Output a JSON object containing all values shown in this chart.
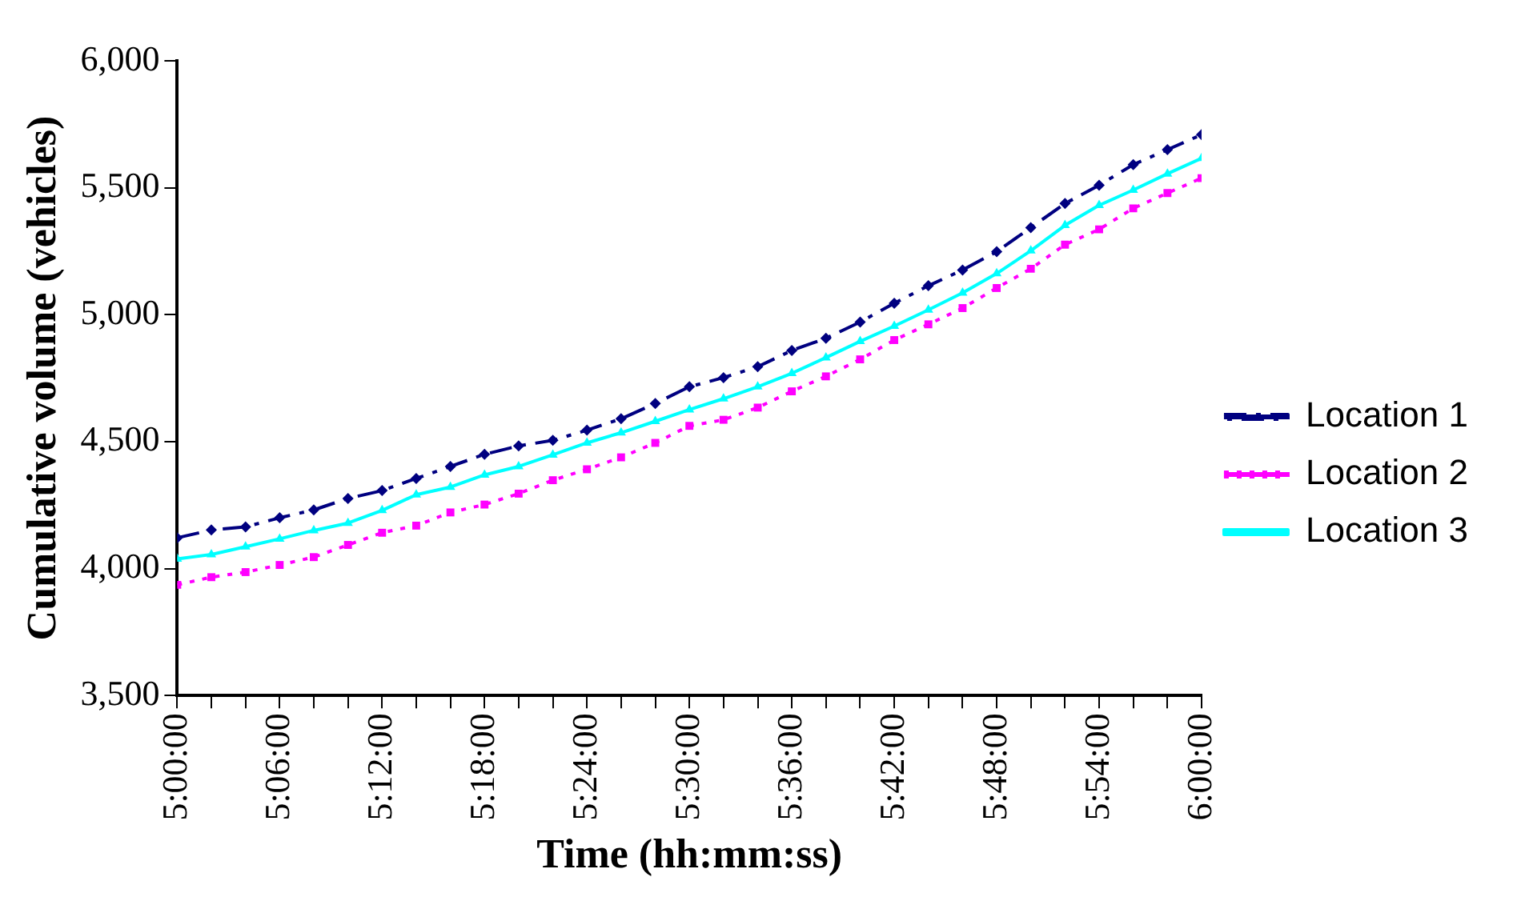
{
  "chart_data": {
    "type": "line",
    "xlabel": "Time (hh:mm:ss)",
    "ylabel": "Cumulative volume (vehicles)",
    "x": [
      5,
      5.0333,
      5.0667,
      5.1,
      5.1333,
      5.1667,
      5.2,
      5.2333,
      5.2667,
      5.3,
      5.3333,
      5.3667,
      5.4,
      5.4333,
      5.4667,
      5.5,
      5.5333,
      5.5667,
      5.6,
      5.6333,
      5.6667,
      5.7,
      5.7333,
      5.7667,
      5.8,
      5.8333,
      5.8667,
      5.9,
      5.9333,
      5.9667,
      6
    ],
    "series": [
      {
        "name": "Location 1",
        "color": "#000080",
        "marker": "diamond",
        "line_style": "dashed",
        "values": [
          4121,
          4152,
          4164,
          4200,
          4231,
          4276,
          4307,
          4355,
          4402,
          4450,
          4483,
          4505,
          4545,
          4590,
          4650,
          4716,
          4752,
          4795,
          4859,
          4907,
          4971,
          5045,
          5114,
          5176,
          5248,
          5343,
          5438,
          5510,
          5591,
          5650,
          5709
        ]
      },
      {
        "name": "Location 2",
        "color": "#ff00ff",
        "marker": "square",
        "line_style": "dotted",
        "values": [
          3936,
          3966,
          3986,
          4014,
          4045,
          4093,
          4141,
          4169,
          4221,
          4252,
          4295,
          4348,
          4391,
          4438,
          4495,
          4562,
          4586,
          4634,
          4698,
          4757,
          4824,
          4900,
          4962,
          5026,
          5105,
          5181,
          5276,
          5336,
          5419,
          5479,
          5538
        ]
      },
      {
        "name": "Location 3",
        "color": "#00ffff",
        "marker": "triangle",
        "line_style": "solid",
        "values": [
          4038,
          4055,
          4086,
          4117,
          4150,
          4179,
          4229,
          4291,
          4321,
          4369,
          4402,
          4448,
          4495,
          4535,
          4580,
          4626,
          4669,
          4716,
          4769,
          4831,
          4895,
          4955,
          5019,
          5086,
          5162,
          5252,
          5352,
          5431,
          5491,
          5555,
          5616
        ]
      }
    ],
    "xlim": [
      5,
      6
    ],
    "xticks": [
      {
        "value": 5,
        "label": "5:00:00"
      },
      {
        "value": 5.0333,
        "label": null
      },
      {
        "value": 5.0667,
        "label": null
      },
      {
        "value": 5.1,
        "label": "5:06:00"
      },
      {
        "value": 5.1333,
        "label": null
      },
      {
        "value": 5.1667,
        "label": null
      },
      {
        "value": 5.2,
        "label": "5:12:00"
      },
      {
        "value": 5.2333,
        "label": null
      },
      {
        "value": 5.2667,
        "label": null
      },
      {
        "value": 5.3,
        "label": "5:18:00"
      },
      {
        "value": 5.3333,
        "label": null
      },
      {
        "value": 5.3667,
        "label": null
      },
      {
        "value": 5.4,
        "label": "5:24:00"
      },
      {
        "value": 5.4333,
        "label": null
      },
      {
        "value": 5.4667,
        "label": null
      },
      {
        "value": 5.5,
        "label": "5:30:00"
      },
      {
        "value": 5.5333,
        "label": null
      },
      {
        "value": 5.5667,
        "label": null
      },
      {
        "value": 5.6,
        "label": "5:36:00"
      },
      {
        "value": 5.6333,
        "label": null
      },
      {
        "value": 5.6667,
        "label": null
      },
      {
        "value": 5.7,
        "label": "5:42:00"
      },
      {
        "value": 5.7333,
        "label": null
      },
      {
        "value": 5.7667,
        "label": null
      },
      {
        "value": 5.8,
        "label": "5:48:00"
      },
      {
        "value": 5.8333,
        "label": null
      },
      {
        "value": 5.8667,
        "label": null
      },
      {
        "value": 5.9,
        "label": "5:54:00"
      },
      {
        "value": 5.9333,
        "label": null
      },
      {
        "value": 5.9667,
        "label": null
      },
      {
        "value": 6,
        "label": "6:00:00"
      }
    ],
    "ylim": [
      3500,
      6000
    ],
    "yticks": [
      {
        "value": 3500,
        "label": "3,500"
      },
      {
        "value": 4000,
        "label": "4,000"
      },
      {
        "value": 4500,
        "label": "4,500"
      },
      {
        "value": 5000,
        "label": "5,000"
      },
      {
        "value": 5500,
        "label": "5,500"
      },
      {
        "value": 6000,
        "label": "6,000"
      }
    ],
    "grid": false,
    "legend": "right"
  }
}
